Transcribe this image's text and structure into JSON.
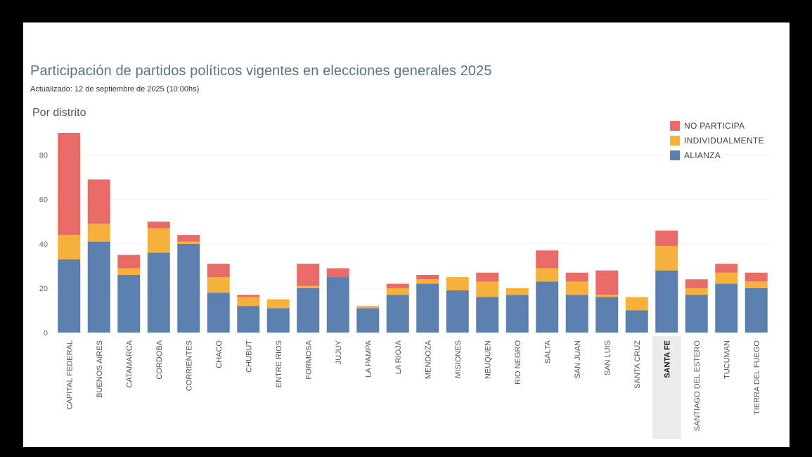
{
  "header": {
    "title": "Participación de partidos políticos vigentes en elecciones generales 2025",
    "subtitle": "Actualizado: 12 de septiembre de 2025 (10:00hs)",
    "section": "Por distrito"
  },
  "colors": {
    "alianza": "#5b7fae",
    "individualmente": "#f5b13c",
    "no_participa": "#e86b68",
    "highlight": "#ececec",
    "grid": "#f0f0f0"
  },
  "chart_data": {
    "type": "bar",
    "stacked": true,
    "categories": [
      "CAPITAL FEDERAL",
      "BUENOS AIRES",
      "CATAMARCA",
      "CORDOBA",
      "CORRIENTES",
      "CHACO",
      "CHUBUT",
      "ENTRE RIOS",
      "FORMOSA",
      "JUJUY",
      "LA PAMPA",
      "LA RIOJA",
      "MENDOZA",
      "MISIONES",
      "NEUQUEN",
      "RIO NEGRO",
      "SALTA",
      "SAN JUAN",
      "SAN LUIS",
      "SANTA CRUZ",
      "SANTA FE",
      "SANTIAGO DEL ESTERO",
      "TUCUMAN",
      "TIERRA DEL FUEGO"
    ],
    "selected_category": "SANTA FE",
    "series": [
      {
        "name": "ALIANZA",
        "color_key": "alianza",
        "values": [
          33,
          41,
          26,
          36,
          40,
          18,
          12,
          11,
          20,
          25,
          11,
          17,
          22,
          19,
          16,
          17,
          23,
          17,
          16,
          10,
          28,
          17,
          22,
          20
        ]
      },
      {
        "name": "INDIVIDUALMENTE",
        "color_key": "individualmente",
        "values": [
          11,
          8,
          3,
          11,
          1,
          7,
          4,
          4,
          1,
          0,
          1,
          3,
          2,
          6,
          7,
          3,
          6,
          6,
          1,
          6,
          11,
          3,
          5,
          3
        ]
      },
      {
        "name": "NO PARTICIPA",
        "color_key": "no_participa",
        "values": [
          46,
          20,
          6,
          3,
          3,
          6,
          1,
          0,
          10,
          4,
          0,
          2,
          2,
          0,
          4,
          0,
          8,
          4,
          11,
          0,
          7,
          4,
          4,
          4
        ]
      }
    ],
    "legend": [
      "NO PARTICIPA",
      "INDIVIDUALMENTE",
      "ALIANZA"
    ],
    "legend_position": "top-right",
    "yticks": [
      "0",
      "20",
      "40",
      "60",
      "80"
    ],
    "ylim": [
      0,
      90
    ],
    "grid": true
  }
}
